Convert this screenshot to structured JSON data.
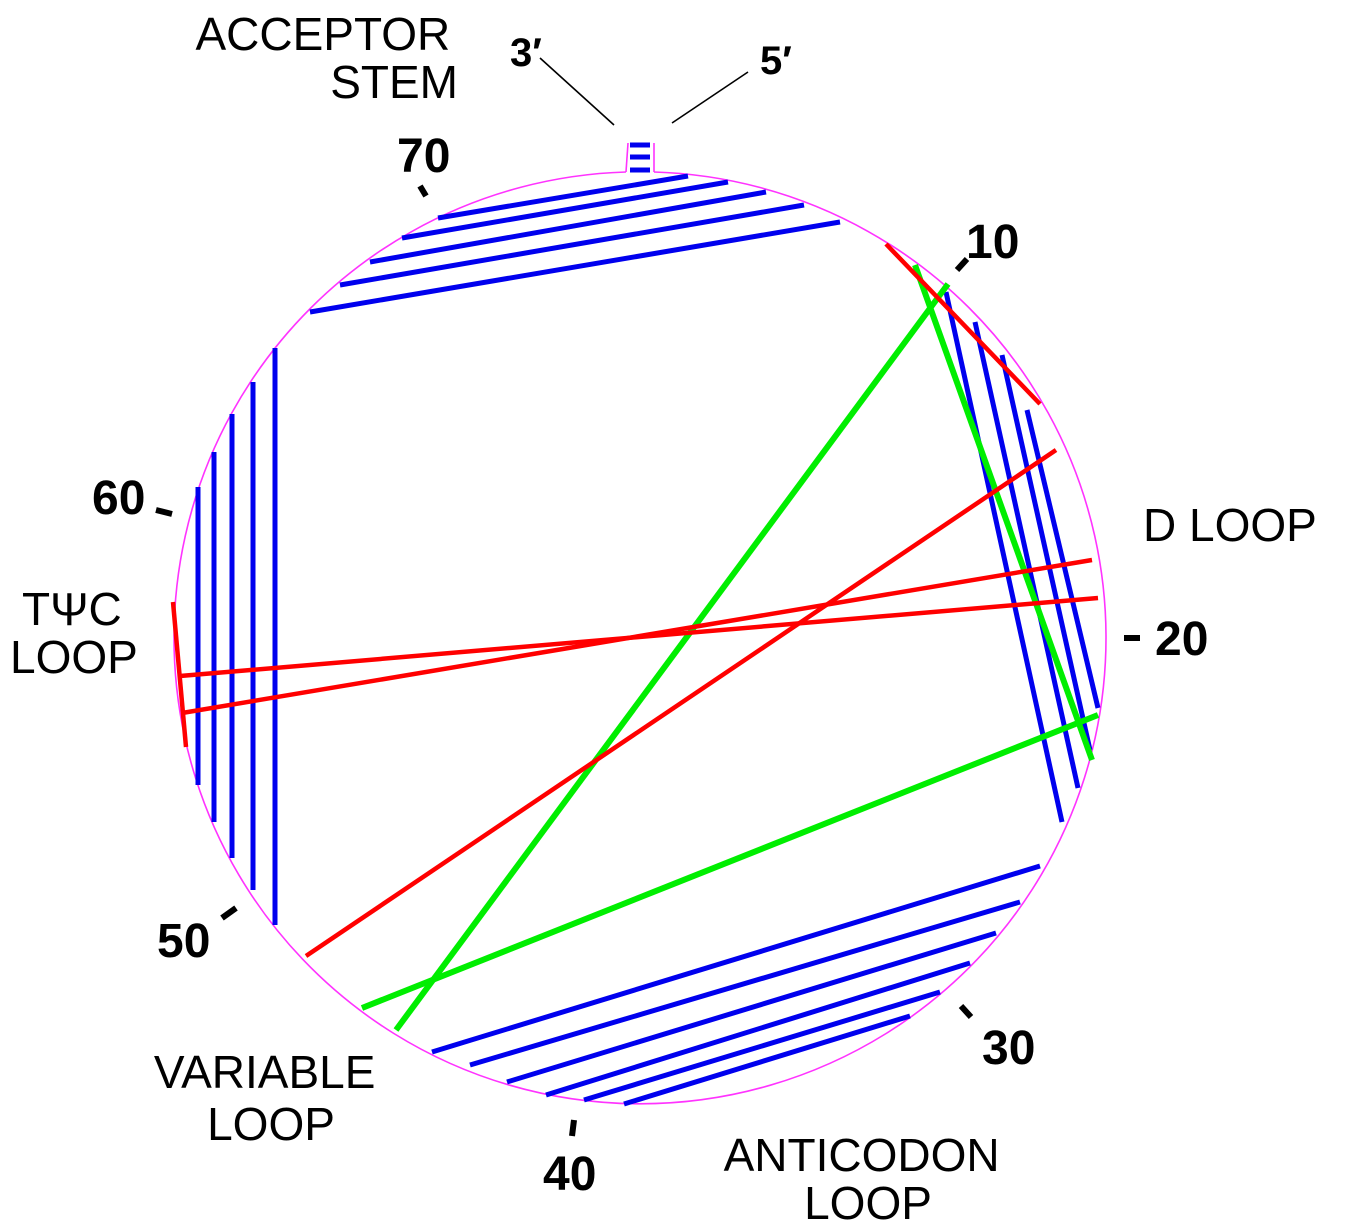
{
  "regions": {
    "acceptor_stem": [
      "ACCEPTOR",
      "STEM"
    ],
    "d_loop": [
      "D LOOP"
    ],
    "tpsic_loop": [
      "TΨC",
      "LOOP"
    ],
    "variable_loop": [
      "VARIABLE",
      "LOOP"
    ],
    "anticodon_loop": [
      "ANTICODON",
      "LOOP"
    ]
  },
  "ends": {
    "three_prime": "3′",
    "five_prime": "5′"
  },
  "ticks": {
    "t10": "10",
    "t20": "20",
    "t30": "30",
    "t40": "40",
    "t50": "50",
    "t60": "60",
    "t70": "70"
  },
  "colors": {
    "circle": "#ff33ff",
    "base_pair": "#0000ee",
    "tertiary_red": "#ff0000",
    "tertiary_green": "#00ee00"
  }
}
